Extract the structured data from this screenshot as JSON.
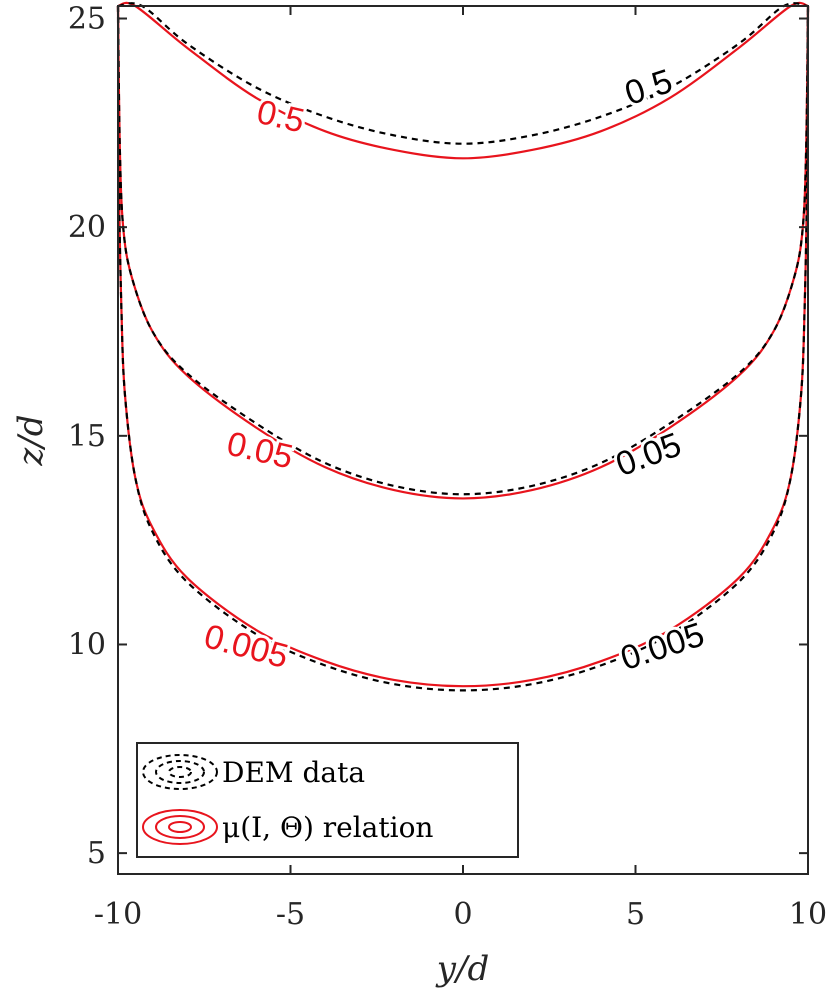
{
  "chart_data": {
    "type": "contour",
    "title": "",
    "xlabel": "y/d",
    "ylabel": "z/d",
    "xlim": [
      -10,
      10
    ],
    "ylim": [
      4.5,
      25.3
    ],
    "x_ticks": [
      -10,
      -5,
      0,
      5,
      10
    ],
    "x_tick_labels": [
      "-10",
      "-5",
      "0",
      "5",
      "10"
    ],
    "y_ticks": [
      5,
      10,
      15,
      20,
      25
    ],
    "y_tick_labels": [
      "5",
      "10",
      "15",
      "20",
      "25"
    ],
    "legend": {
      "placement": "bottom-left",
      "entries": [
        {
          "label": "DEM data",
          "style": "dashed",
          "color": "#000000"
        },
        {
          "label": "μ(I, Θ) relation",
          "style": "solid",
          "color": "#e8141d"
        }
      ]
    },
    "series": [
      {
        "name": "DEM data",
        "style": "dashed",
        "color": "#000000",
        "levels": [
          {
            "level": "0.5",
            "label_pos": {
              "y": 5.4,
              "z": 23.3,
              "angle": -18
            },
            "points": [
              [
                -10,
                25.3
              ],
              [
                -9.3,
                25.3
              ],
              [
                -8,
                24.4
              ],
              [
                -6,
                23.35
              ],
              [
                -4,
                22.65
              ],
              [
                -2,
                22.2
              ],
              [
                0,
                22.0
              ],
              [
                2,
                22.2
              ],
              [
                4,
                22.65
              ],
              [
                6,
                23.35
              ],
              [
                8,
                24.4
              ],
              [
                9.3,
                25.3
              ],
              [
                10,
                25.3
              ]
            ]
          },
          {
            "level": "0.05",
            "label_pos": {
              "y": 5.4,
              "z": 14.5,
              "angle": -20
            },
            "points": [
              [
                -10,
                25.3
              ],
              [
                -9.95,
                22
              ],
              [
                -9.85,
                20
              ],
              [
                -9.6,
                18.8
              ],
              [
                -9,
                17.5
              ],
              [
                -8,
                16.5
              ],
              [
                -6,
                15.3
              ],
              [
                -4,
                14.35
              ],
              [
                -2,
                13.8
              ],
              [
                0,
                13.6
              ],
              [
                2,
                13.8
              ],
              [
                4,
                14.35
              ],
              [
                6,
                15.3
              ],
              [
                8,
                16.5
              ],
              [
                9,
                17.5
              ],
              [
                9.6,
                18.8
              ],
              [
                9.85,
                20
              ],
              [
                9.95,
                22
              ],
              [
                10,
                25.3
              ]
            ]
          },
          {
            "level": "0.005",
            "label_pos": {
              "y": 5.8,
              "z": 9.9,
              "angle": -18
            },
            "points": [
              [
                -10,
                25.3
              ],
              [
                -9.97,
                21
              ],
              [
                -9.9,
                18
              ],
              [
                -9.8,
                16
              ],
              [
                -9.5,
                14
              ],
              [
                -9,
                12.7
              ],
              [
                -8,
                11.5
              ],
              [
                -6,
                10.25
              ],
              [
                -4,
                9.5
              ],
              [
                -2,
                9.05
              ],
              [
                0,
                8.9
              ],
              [
                2,
                9.05
              ],
              [
                4,
                9.5
              ],
              [
                6,
                10.25
              ],
              [
                8,
                11.5
              ],
              [
                9,
                12.7
              ],
              [
                9.5,
                14
              ],
              [
                9.8,
                16
              ],
              [
                9.9,
                18
              ],
              [
                9.97,
                21
              ],
              [
                10,
                25.3
              ]
            ]
          }
        ]
      },
      {
        "name": "μ(I, Θ) relation",
        "style": "solid",
        "color": "#e8141d",
        "levels": [
          {
            "level": "0.5",
            "label_pos": {
              "y": -5.3,
              "z": 22.6,
              "angle": 13
            },
            "points": [
              [
                -10,
                25.3
              ],
              [
                -9.5,
                25.3
              ],
              [
                -8,
                24.3
              ],
              [
                -6,
                23.1
              ],
              [
                -4,
                22.3
              ],
              [
                -2,
                21.85
              ],
              [
                0,
                21.65
              ],
              [
                2,
                21.85
              ],
              [
                4,
                22.3
              ],
              [
                6,
                23.1
              ],
              [
                8,
                24.3
              ],
              [
                9.5,
                25.3
              ],
              [
                10,
                25.3
              ]
            ]
          },
          {
            "level": "0.05",
            "label_pos": {
              "y": -5.9,
              "z": 14.6,
              "angle": 13
            },
            "points": [
              [
                -10,
                25.3
              ],
              [
                -9.95,
                22
              ],
              [
                -9.85,
                20
              ],
              [
                -9.6,
                18.8
              ],
              [
                -9,
                17.5
              ],
              [
                -8,
                16.45
              ],
              [
                -6,
                15.2
              ],
              [
                -4,
                14.25
              ],
              [
                -2,
                13.7
              ],
              [
                0,
                13.5
              ],
              [
                2,
                13.7
              ],
              [
                4,
                14.25
              ],
              [
                6,
                15.2
              ],
              [
                8,
                16.45
              ],
              [
                9,
                17.5
              ],
              [
                9.6,
                18.8
              ],
              [
                9.85,
                20
              ],
              [
                9.95,
                22
              ],
              [
                10,
                25.3
              ]
            ]
          },
          {
            "level": "0.005",
            "label_pos": {
              "y": -6.3,
              "z": 9.9,
              "angle": 15
            },
            "points": [
              [
                -10,
                25.3
              ],
              [
                -9.97,
                21
              ],
              [
                -9.9,
                18
              ],
              [
                -9.8,
                16
              ],
              [
                -9.5,
                14
              ],
              [
                -9,
                12.8
              ],
              [
                -8,
                11.6
              ],
              [
                -6,
                10.35
              ],
              [
                -4,
                9.6
              ],
              [
                -2,
                9.15
              ],
              [
                0,
                9.0
              ],
              [
                2,
                9.15
              ],
              [
                4,
                9.6
              ],
              [
                6,
                10.35
              ],
              [
                8,
                11.6
              ],
              [
                9,
                12.8
              ],
              [
                9.5,
                14
              ],
              [
                9.8,
                16
              ],
              [
                9.9,
                18
              ],
              [
                9.97,
                21
              ],
              [
                10,
                25.3
              ]
            ]
          }
        ]
      }
    ]
  }
}
